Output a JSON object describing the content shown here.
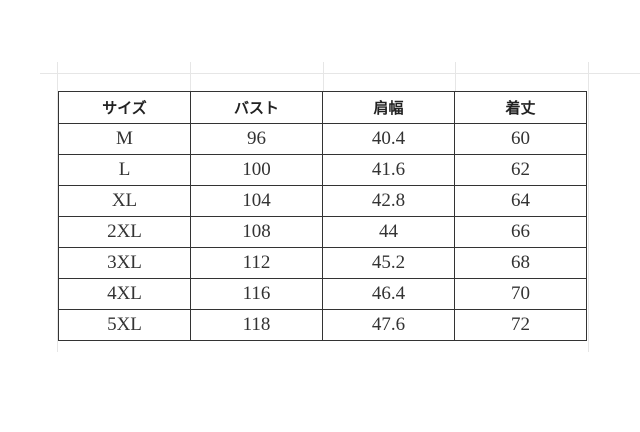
{
  "headers": [
    "サイズ",
    "バスト",
    "肩幅",
    "着丈"
  ],
  "rows": [
    [
      "M",
      "96",
      "40.4",
      "60"
    ],
    [
      "L",
      "100",
      "41.6",
      "62"
    ],
    [
      "XL",
      "104",
      "42.8",
      "64"
    ],
    [
      "2XL",
      "108",
      "44",
      "66"
    ],
    [
      "3XL",
      "112",
      "45.2",
      "68"
    ],
    [
      "4XL",
      "116",
      "46.4",
      "70"
    ],
    [
      "5XL",
      "118",
      "47.6",
      "72"
    ]
  ]
}
